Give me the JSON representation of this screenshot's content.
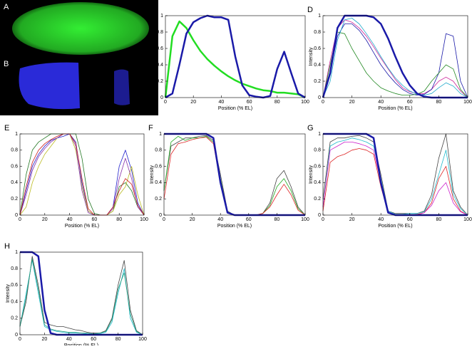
{
  "images": [
    {
      "label": "A"
    },
    {
      "label": "B"
    }
  ],
  "chart_data": [
    {
      "type": "line",
      "label": "C",
      "x_label": "Position (% EL)",
      "y_label": "Intensity",
      "x": [
        0,
        5,
        10,
        15,
        20,
        25,
        30,
        35,
        40,
        45,
        50,
        55,
        60,
        65,
        70,
        75,
        80,
        85,
        90,
        95,
        100
      ],
      "xlim": [
        0,
        100
      ],
      "xticks": [
        0,
        20,
        40,
        60,
        80,
        100
      ],
      "ylim": [
        0,
        1
      ],
      "yticks": [
        0,
        0.2,
        0.4,
        0.6,
        0.8,
        1
      ],
      "series": [
        {
          "color": "#22dd22",
          "line_width": 2.5,
          "values": [
            0,
            0.75,
            0.93,
            0.85,
            0.7,
            0.57,
            0.47,
            0.39,
            0.32,
            0.26,
            0.21,
            0.17,
            0.14,
            0.11,
            0.09,
            0.08,
            0.06,
            0.06,
            0.05,
            0.04,
            0
          ]
        },
        {
          "color": "#1a1aa8",
          "line_width": 2.5,
          "values": [
            0,
            0.05,
            0.4,
            0.78,
            0.92,
            0.97,
            1,
            0.98,
            0.98,
            0.95,
            0.5,
            0.15,
            0.03,
            0.01,
            0,
            0.02,
            0.35,
            0.56,
            0.3,
            0.05,
            0
          ]
        }
      ]
    },
    {
      "type": "line",
      "label": "D",
      "x_label": "Position (% EL)",
      "y_label": "Intensity",
      "x": [
        0,
        5,
        10,
        15,
        20,
        25,
        30,
        35,
        40,
        45,
        50,
        55,
        60,
        65,
        70,
        75,
        80,
        85,
        90,
        95,
        100
      ],
      "xlim": [
        0,
        100
      ],
      "xticks": [
        0,
        20,
        40,
        60,
        80,
        100
      ],
      "ylim": [
        0,
        1
      ],
      "yticks": [
        0,
        0.2,
        0.4,
        0.6,
        0.8,
        1
      ],
      "series": [
        {
          "color": "#cc2299",
          "line_width": 0.8,
          "values": [
            0,
            0.45,
            0.85,
            0.95,
            0.92,
            0.85,
            0.75,
            0.62,
            0.48,
            0.35,
            0.22,
            0.12,
            0.07,
            0.05,
            0.05,
            0.1,
            0.2,
            0.25,
            0.2,
            0.08,
            0
          ]
        },
        {
          "color": "#1a1aa8",
          "line_width": 0.8,
          "values": [
            0,
            0.3,
            0.75,
            0.9,
            0.9,
            0.82,
            0.7,
            0.55,
            0.4,
            0.28,
            0.18,
            0.1,
            0.05,
            0.03,
            0.04,
            0.1,
            0.3,
            0.78,
            0.75,
            0.2,
            0
          ]
        },
        {
          "color": "#228822",
          "line_width": 0.8,
          "values": [
            0,
            0.4,
            0.8,
            0.78,
            0.6,
            0.45,
            0.3,
            0.2,
            0.12,
            0.08,
            0.05,
            0.03,
            0.03,
            0.04,
            0.08,
            0.2,
            0.3,
            0.4,
            0.35,
            0.1,
            0
          ]
        },
        {
          "color": "#22aacc",
          "line_width": 0.8,
          "values": [
            0,
            0.2,
            0.7,
            0.95,
            0.97,
            0.9,
            0.78,
            0.65,
            0.5,
            0.36,
            0.24,
            0.15,
            0.08,
            0.04,
            0.03,
            0.05,
            0.12,
            0.18,
            0.14,
            0.05,
            0
          ]
        },
        {
          "color": "#1a1aa8",
          "line_width": 2.5,
          "values": [
            0,
            0.3,
            0.85,
            1,
            1,
            1,
            1,
            0.98,
            0.9,
            0.72,
            0.5,
            0.3,
            0.15,
            0.05,
            0.01,
            0,
            0,
            0,
            0,
            0,
            0
          ]
        }
      ]
    },
    {
      "type": "line",
      "label": "E",
      "x_label": "Position (% EL)",
      "x": [
        0,
        5,
        10,
        15,
        20,
        25,
        30,
        35,
        40,
        45,
        50,
        55,
        60,
        65,
        70,
        75,
        80,
        85,
        90,
        95,
        100
      ],
      "xlim": [
        0,
        100
      ],
      "xticks": [
        0,
        20,
        40,
        60,
        80,
        100
      ],
      "ylim": [
        0,
        1
      ],
      "yticks": [
        0,
        0.2,
        0.4,
        0.6,
        0.8,
        1
      ],
      "series": [
        {
          "color": "#2222cc",
          "line_width": 0.8,
          "values": [
            0,
            0.3,
            0.6,
            0.75,
            0.85,
            0.92,
            0.95,
            0.97,
            1,
            0.9,
            0.4,
            0.05,
            0,
            0,
            0,
            0.1,
            0.6,
            0.8,
            0.55,
            0.15,
            0
          ]
        },
        {
          "color": "#227722",
          "line_width": 0.8,
          "values": [
            0,
            0.5,
            0.8,
            0.9,
            0.95,
            1,
            1,
            1,
            1,
            1,
            0.7,
            0.2,
            0.02,
            0,
            0,
            0.05,
            0.35,
            0.4,
            0.3,
            0.1,
            0
          ]
        },
        {
          "color": "#bbbb22",
          "line_width": 0.8,
          "values": [
            0,
            0.1,
            0.4,
            0.6,
            0.75,
            0.85,
            0.95,
            1,
            1,
            0.8,
            0.35,
            0.05,
            0,
            0,
            0,
            0.05,
            0.25,
            0.35,
            0.6,
            0.25,
            0
          ]
        },
        {
          "color": "#8833aa",
          "line_width": 0.8,
          "values": [
            0,
            0.25,
            0.55,
            0.72,
            0.82,
            0.9,
            0.95,
            1,
            1,
            0.85,
            0.3,
            0.03,
            0,
            0,
            0,
            0.08,
            0.45,
            0.7,
            0.45,
            0.1,
            0
          ]
        },
        {
          "color": "#cc2222",
          "line_width": 0.8,
          "values": [
            0,
            0.35,
            0.65,
            0.8,
            0.88,
            0.93,
            0.97,
            1,
            1,
            0.88,
            0.45,
            0.08,
            0,
            0,
            0,
            0.1,
            0.3,
            0.45,
            0.38,
            0.12,
            0
          ]
        }
      ]
    },
    {
      "type": "line",
      "label": "F",
      "x_label": "Position (% EL)",
      "y_label": "Intensity",
      "x": [
        0,
        5,
        10,
        15,
        20,
        25,
        30,
        35,
        40,
        45,
        50,
        55,
        60,
        65,
        70,
        75,
        80,
        85,
        90,
        95,
        100
      ],
      "xlim": [
        0,
        100
      ],
      "xticks": [
        0,
        20,
        40,
        60,
        80,
        100
      ],
      "ylim": [
        0,
        1
      ],
      "yticks": [
        0,
        0.2,
        0.4,
        0.6,
        0.8,
        1
      ],
      "series": [
        {
          "color": "#444444",
          "line_width": 0.8,
          "values": [
            0.3,
            0.85,
            0.9,
            0.95,
            0.95,
            0.97,
            0.98,
            0.92,
            0.5,
            0.05,
            0,
            0,
            0,
            0,
            0.02,
            0.15,
            0.45,
            0.55,
            0.35,
            0.1,
            0
          ]
        },
        {
          "color": "#22aa22",
          "line_width": 0.8,
          "values": [
            0.3,
            0.9,
            0.97,
            0.92,
            0.95,
            0.95,
            0.97,
            0.9,
            0.45,
            0.04,
            0,
            0,
            0,
            0,
            0.02,
            0.12,
            0.35,
            0.45,
            0.3,
            0.08,
            0
          ]
        },
        {
          "color": "#dd2222",
          "line_width": 0.8,
          "values": [
            0.2,
            0.75,
            0.88,
            0.9,
            0.93,
            0.95,
            0.96,
            0.88,
            0.4,
            0.03,
            0,
            0,
            0,
            0,
            0.02,
            0.1,
            0.25,
            0.38,
            0.25,
            0.06,
            0
          ]
        },
        {
          "color": "#1a1aa8",
          "line_width": 2.5,
          "values": [
            1,
            1,
            1,
            1,
            1,
            1,
            1,
            0.95,
            0.4,
            0.03,
            0,
            0,
            0,
            0,
            0,
            0,
            0,
            0,
            0,
            0,
            0
          ]
        }
      ]
    },
    {
      "type": "line",
      "label": "G",
      "x_label": "Position (% EL)",
      "y_label": "Intensity",
      "x": [
        0,
        5,
        10,
        15,
        20,
        25,
        30,
        35,
        40,
        45,
        50,
        55,
        60,
        65,
        70,
        75,
        80,
        85,
        90,
        95,
        100
      ],
      "xlim": [
        0,
        100
      ],
      "xticks": [
        0,
        20,
        40,
        60,
        80,
        100
      ],
      "ylim": [
        0,
        1
      ],
      "yticks": [
        0,
        0.2,
        0.4,
        0.6,
        0.8,
        1
      ],
      "series": [
        {
          "color": "#444444",
          "line_width": 0.8,
          "values": [
            0.2,
            0.9,
            0.95,
            0.95,
            0.97,
            0.98,
            0.95,
            0.9,
            0.5,
            0.05,
            0.02,
            0.02,
            0.02,
            0.02,
            0.05,
            0.25,
            0.7,
            1,
            0.3,
            0.1,
            0
          ]
        },
        {
          "color": "#22bbcc",
          "line_width": 0.8,
          "values": [
            0.1,
            0.85,
            0.9,
            0.92,
            0.95,
            0.93,
            0.9,
            0.85,
            0.45,
            0.05,
            0.01,
            0.01,
            0.02,
            0.02,
            0.04,
            0.2,
            0.5,
            0.8,
            0.25,
            0.08,
            0
          ]
        },
        {
          "color": "#dd2222",
          "line_width": 0.8,
          "values": [
            0.05,
            0.65,
            0.72,
            0.75,
            0.8,
            0.82,
            0.8,
            0.75,
            0.35,
            0.03,
            0,
            0,
            0,
            0.01,
            0.03,
            0.15,
            0.45,
            0.6,
            0.2,
            0.05,
            0
          ]
        },
        {
          "color": "#cc22cc",
          "line_width": 0.8,
          "values": [
            0.1,
            0.8,
            0.85,
            0.9,
            0.9,
            0.88,
            0.85,
            0.8,
            0.4,
            0.04,
            0,
            0,
            0,
            0,
            0.03,
            0.12,
            0.3,
            0.4,
            0.15,
            0.04,
            0
          ]
        },
        {
          "color": "#1a1aa8",
          "line_width": 2.5,
          "values": [
            1,
            1,
            1,
            1,
            1,
            1,
            1,
            0.95,
            0.4,
            0.03,
            0,
            0,
            0,
            0,
            0,
            0,
            0,
            0,
            0,
            0,
            0
          ]
        }
      ]
    },
    {
      "type": "line",
      "label": "H",
      "x_label": "Position (% EL)",
      "y_label": "Intensity",
      "x": [
        0,
        5,
        10,
        15,
        20,
        25,
        30,
        35,
        40,
        45,
        50,
        55,
        60,
        65,
        70,
        75,
        80,
        85,
        90,
        95,
        100
      ],
      "xlim": [
        0,
        100
      ],
      "xticks": [
        0,
        20,
        40,
        60,
        80,
        100
      ],
      "ylim": [
        0,
        1
      ],
      "yticks": [
        0,
        0.2,
        0.4,
        0.6,
        0.8,
        1
      ],
      "series": [
        {
          "color": "#444444",
          "line_width": 0.8,
          "values": [
            0.1,
            0.4,
            0.95,
            0.6,
            0.15,
            0.12,
            0.1,
            0.1,
            0.08,
            0.06,
            0.05,
            0.03,
            0.02,
            0.02,
            0.05,
            0.2,
            0.6,
            0.9,
            0.3,
            0.05,
            0
          ]
        },
        {
          "color": "#22bbcc",
          "line_width": 0.8,
          "values": [
            0.1,
            0.5,
            0.9,
            0.5,
            0.1,
            0.06,
            0.04,
            0.03,
            0.02,
            0.02,
            0.02,
            0.01,
            0.01,
            0.01,
            0.03,
            0.15,
            0.5,
            0.8,
            0.2,
            0.03,
            0
          ]
        },
        {
          "color": "#229977",
          "line_width": 0.8,
          "values": [
            0.1,
            0.45,
            0.92,
            0.55,
            0.12,
            0.07,
            0.05,
            0.04,
            0.03,
            0.03,
            0.02,
            0.02,
            0.01,
            0.02,
            0.04,
            0.18,
            0.55,
            0.75,
            0.25,
            0.04,
            0
          ]
        },
        {
          "color": "#1a1aa8",
          "line_width": 2.5,
          "values": [
            1,
            1,
            1,
            0.95,
            0.3,
            0.02,
            0,
            0,
            0,
            0,
            0,
            0,
            0,
            0,
            0,
            0,
            0,
            0,
            0,
            0,
            0
          ]
        }
      ]
    }
  ]
}
